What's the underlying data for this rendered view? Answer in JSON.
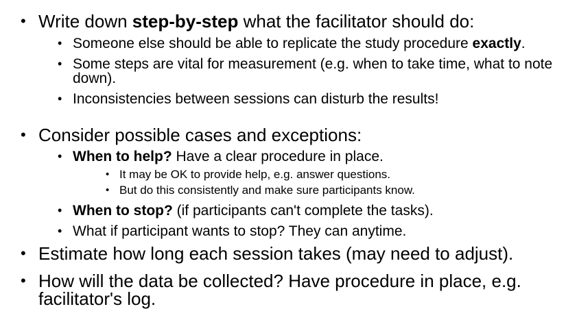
{
  "bullets": {
    "glyph": "•"
  },
  "item1": {
    "pre": "Write down ",
    "bold": "step-by-step",
    "post": " what the facilitator should do:",
    "sub": {
      "a": {
        "text": "Someone else should be able to replicate the study procedure ",
        "bold": "exactly",
        "post": "."
      },
      "b": {
        "text": "Some steps are vital for measurement (e.g. when to take time, what to note down)."
      },
      "c": {
        "text": "Inconsistencies between sessions can disturb the results!"
      }
    }
  },
  "item2": {
    "text": "Consider possible cases and exceptions:",
    "sub": {
      "a": {
        "bold": "When to help?",
        "post": " Have a clear procedure in place.",
        "sub": {
          "a": "It may be OK to provide help, e.g. answer questions.",
          "b": "But do this consistently and make sure participants know."
        }
      },
      "b": {
        "bold": "When to stop?",
        "post": " (if participants can't complete the tasks)."
      },
      "c": {
        "text": "What if participant wants to stop? They can anytime."
      }
    }
  },
  "item3": {
    "text": "Estimate how long each session takes (may need to adjust)."
  },
  "item4": {
    "text": "How will the data be collected? Have procedure in place, e.g. facilitator's log."
  }
}
